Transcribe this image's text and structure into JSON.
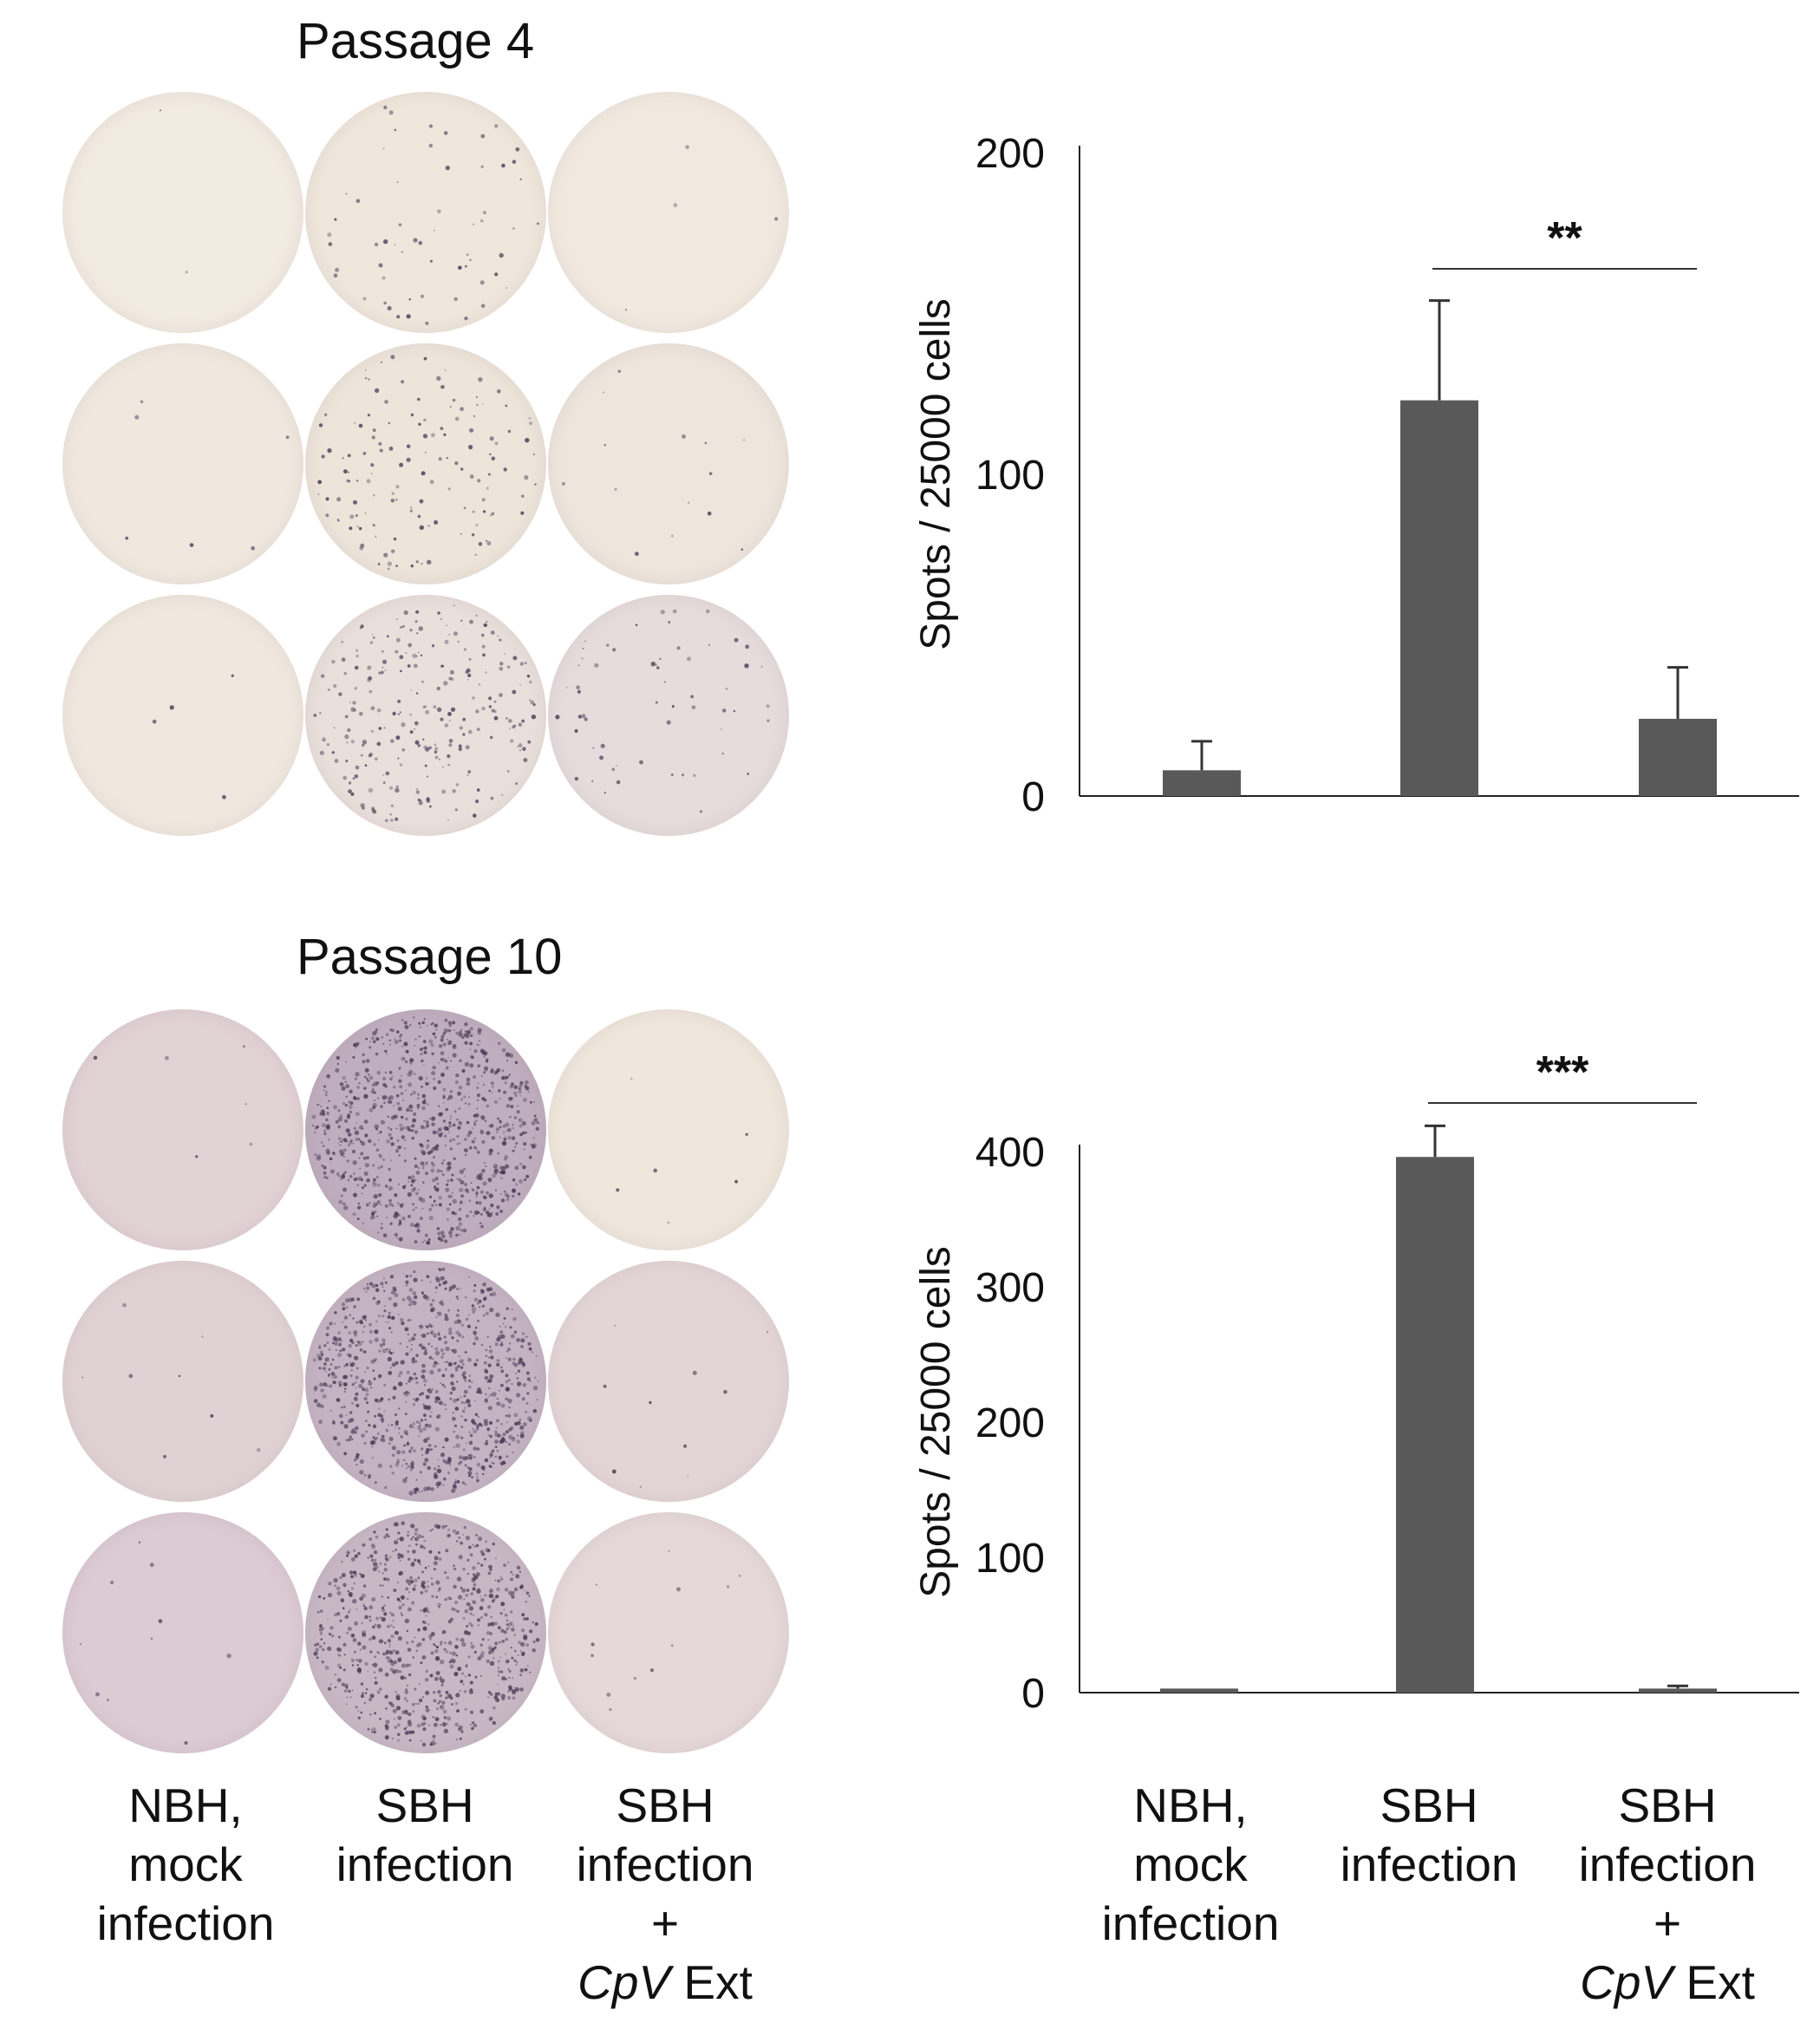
{
  "panels": [
    {
      "title": "Passage 4"
    },
    {
      "title": "Passage 10"
    }
  ],
  "category_labels": [
    {
      "lines": [
        "NBH,",
        "mock",
        "infection"
      ],
      "extra": null
    },
    {
      "lines": [
        "SBH",
        "infection"
      ],
      "extra": null
    },
    {
      "lines": [
        "SBH",
        "infection",
        "+"
      ],
      "extra": {
        "italic": "CpV",
        "normal": " Ext"
      }
    }
  ],
  "wells": {
    "passage4": [
      {
        "bg": "#f2ebe1",
        "spots": 2
      },
      {
        "bg": "#efe6dc",
        "spots": 60
      },
      {
        "bg": "#f1e9df",
        "spots": 4
      },
      {
        "bg": "#f0e8de",
        "spots": 6
      },
      {
        "bg": "#ede4da",
        "spots": 140
      },
      {
        "bg": "#eee5dc",
        "spots": 14
      },
      {
        "bg": "#f0e8de",
        "spots": 4
      },
      {
        "bg": "#e9dfdb",
        "spots": 260
      },
      {
        "bg": "#e6dcdc",
        "spots": 60
      }
    ],
    "passage10": [
      {
        "bg": "#e1d2d6",
        "spots": 6
      },
      {
        "bg": "#bfaebf",
        "spots": 900
      },
      {
        "bg": "#efe6dc",
        "spots": 6
      },
      {
        "bg": "#e0d2d4",
        "spots": 8
      },
      {
        "bg": "#c4b3c3",
        "spots": 900
      },
      {
        "bg": "#e3d5d6",
        "spots": 10
      },
      {
        "bg": "#dccbd3",
        "spots": 10
      },
      {
        "bg": "#c8b8c5",
        "spots": 800
      },
      {
        "bg": "#e5d8d8",
        "spots": 12
      }
    ]
  },
  "colors": {
    "bar": "#595959",
    "axis": "#222222",
    "spot": "#4a3a55"
  },
  "chart_data": [
    {
      "type": "bar",
      "title": "Passage 4",
      "categories": [
        "NBH, mock infection",
        "SBH infection",
        "SBH infection + CpV Ext"
      ],
      "values": [
        8,
        123,
        24
      ],
      "errors": [
        9,
        31,
        16
      ],
      "ylabel": "Spots / 25000 cells",
      "ylim": [
        0,
        200
      ],
      "yticks": [
        "0",
        "100",
        "200"
      ],
      "significance": {
        "label": "**",
        "from_category": 1,
        "to_category": 2
      }
    },
    {
      "type": "bar",
      "title": "Passage 10",
      "categories": [
        "NBH, mock infection",
        "SBH infection",
        "SBH infection + CpV Ext"
      ],
      "values": [
        3,
        396,
        3
      ],
      "errors": [
        0,
        23,
        2
      ],
      "ylabel": "Spots / 25000 cells",
      "ylim": [
        0,
        400
      ],
      "yticks": [
        "0",
        "100",
        "200",
        "300",
        "400"
      ],
      "significance": {
        "label": "***",
        "from_category": 1,
        "to_category": 2
      }
    }
  ]
}
